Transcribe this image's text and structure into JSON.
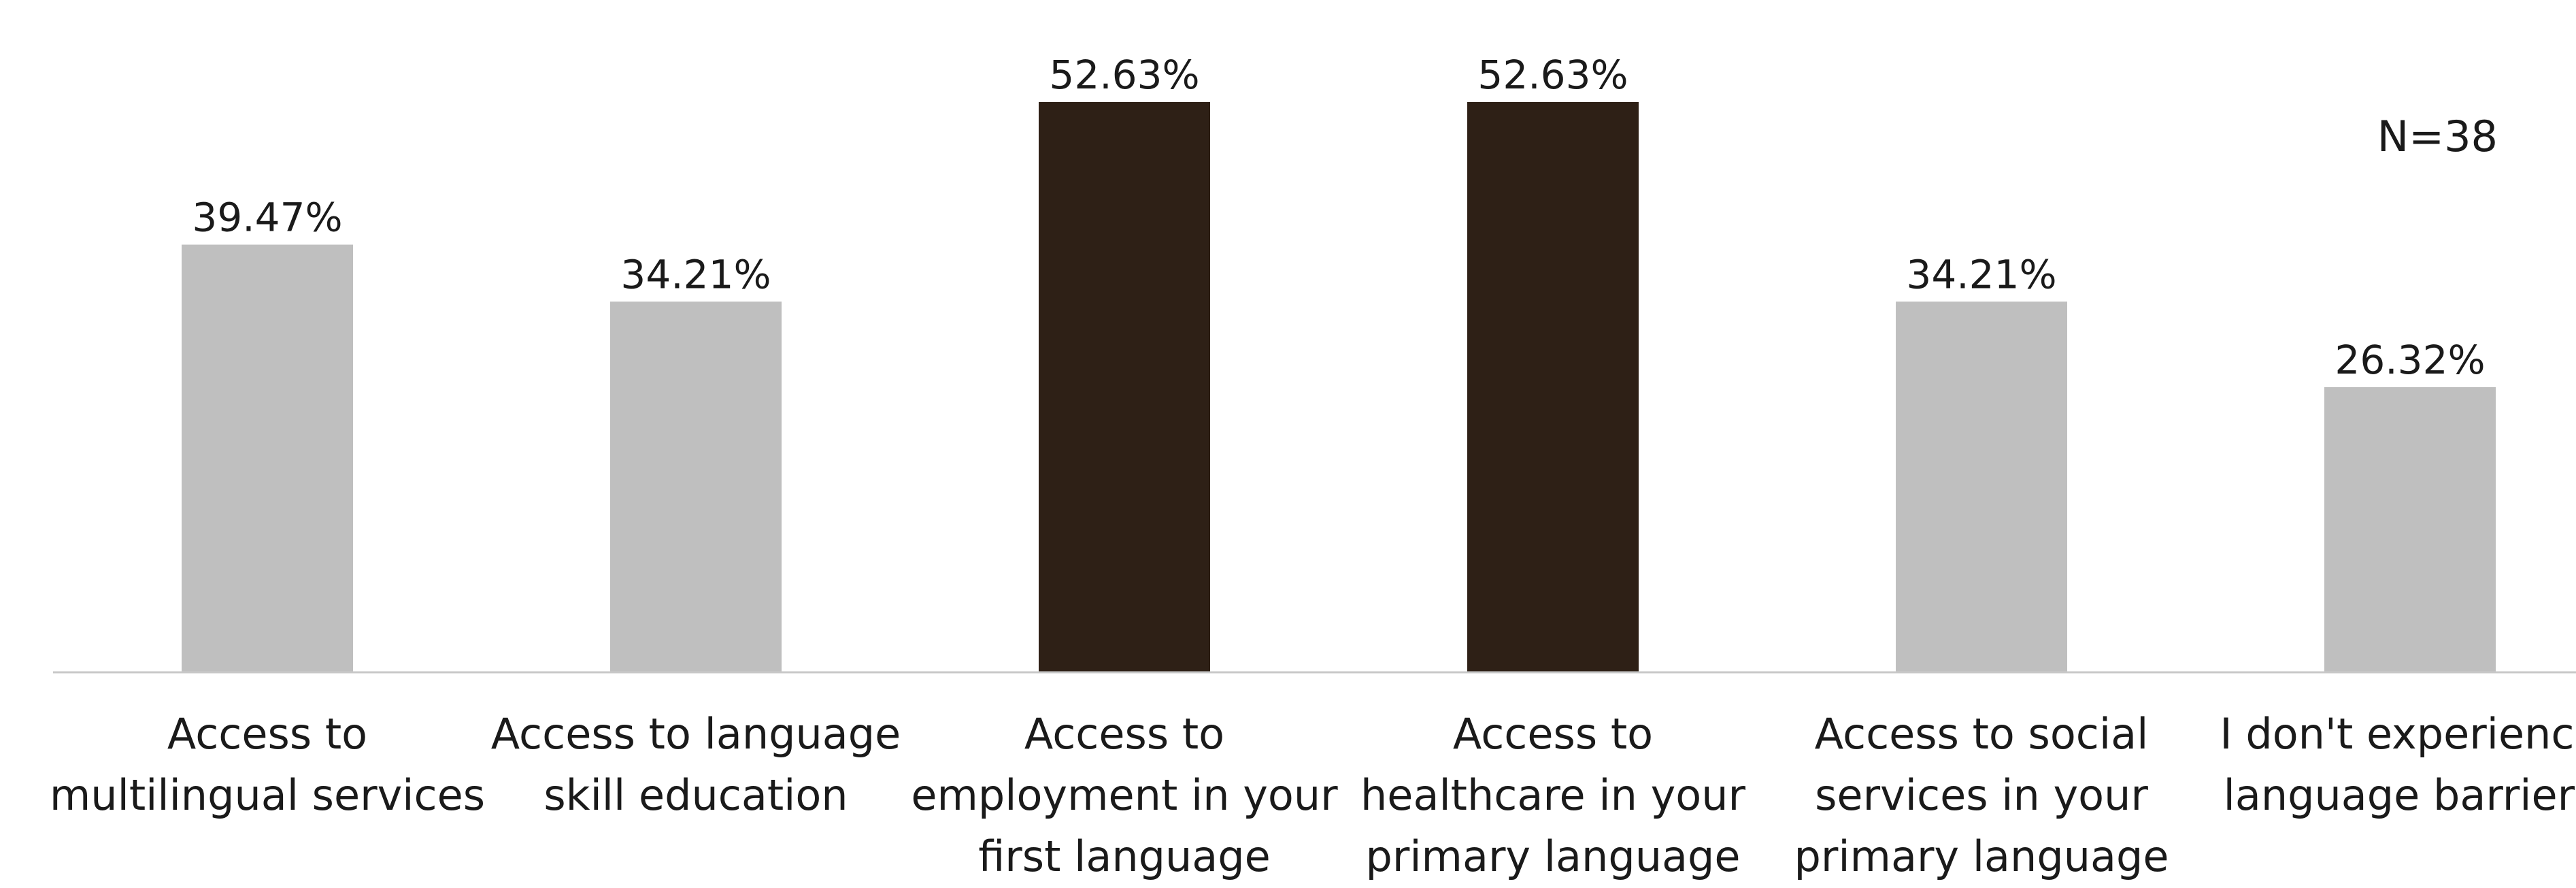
{
  "chart_data": {
    "type": "bar",
    "title": "",
    "xlabel": "",
    "ylabel": "",
    "annotation": "N=38",
    "categories": [
      [
        "Access to",
        "multilingual services"
      ],
      [
        "Access to language",
        "skill education"
      ],
      [
        "Access to",
        "employment in your",
        "first language"
      ],
      [
        "Access to",
        "healthcare in your",
        "primary language"
      ],
      [
        "Access to social",
        "services in your",
        "primary language"
      ],
      [
        "I don't experience",
        "language barriers"
      ]
    ],
    "values": [
      39.47,
      34.21,
      52.63,
      52.63,
      34.21,
      26.32
    ],
    "value_labels": [
      "39.47%",
      "34.21%",
      "52.63%",
      "52.63%",
      "34.21%",
      "26.32%"
    ],
    "highlighted": [
      false,
      false,
      true,
      true,
      false,
      false
    ],
    "ylim": [
      0,
      52.63
    ],
    "grid": false,
    "legend": "none",
    "colors": {
      "bar": "#bfbfbf",
      "highlight": "#2e2016",
      "axis": "#c8c8c8",
      "text": "#1a1a1a"
    }
  }
}
